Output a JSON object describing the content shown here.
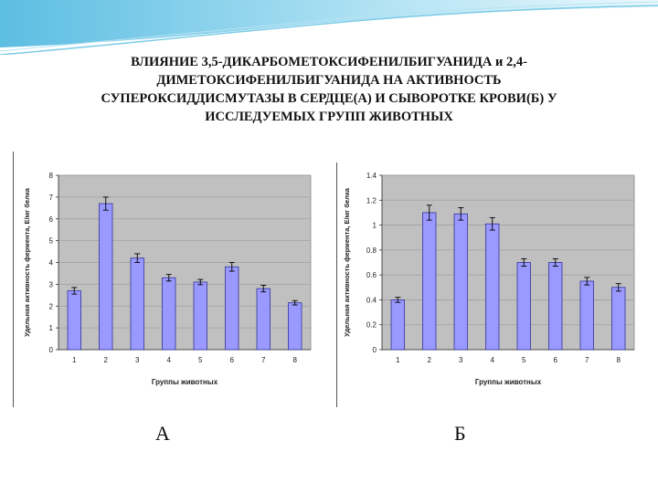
{
  "slide": {
    "title": "ВЛИЯНИЕ 3,5-ДИКАРБОМЕТОКСИФЕНИЛБИГУАНИДА и 2,4-\nДИМЕТОКСИФЕНИЛБИГУАНИДА НА АКТИВНОСТЬ\nСУПЕРОКСИДДИСМУТАЗЫ В СЕРДЦЕ(А) И СЫВОРОТКЕ КРОВИ(Б) У\nИССЛЕДУЕМЫХ ГРУПП ЖИВОТНЫХ",
    "label_a": "А",
    "label_b": "Б"
  },
  "colors": {
    "plot_bg": "#c0c0c0",
    "bar_fill": "#9999ff",
    "bar_stroke": "#333399",
    "wave": "#6fc4e3"
  },
  "chart_data": [
    {
      "type": "bar",
      "categories": [
        "1",
        "2",
        "3",
        "4",
        "5",
        "6",
        "7",
        "8"
      ],
      "values": [
        2.7,
        6.7,
        4.2,
        3.3,
        3.1,
        3.8,
        2.8,
        2.15
      ],
      "errors": [
        0.15,
        0.3,
        0.2,
        0.15,
        0.12,
        0.2,
        0.15,
        0.1
      ],
      "ylim": [
        0,
        8
      ],
      "yticks": [
        "0",
        "1",
        "2",
        "3",
        "4",
        "5",
        "6",
        "7",
        "8"
      ],
      "xlabel": "Группы животных",
      "ylabel": "Удельная активность фермента, Е/мг белка",
      "grid": true
    },
    {
      "type": "bar",
      "categories": [
        "1",
        "2",
        "3",
        "4",
        "5",
        "6",
        "7",
        "8"
      ],
      "values": [
        0.4,
        1.1,
        1.09,
        1.01,
        0.7,
        0.7,
        0.55,
        0.5
      ],
      "errors": [
        0.02,
        0.06,
        0.05,
        0.05,
        0.03,
        0.03,
        0.03,
        0.03
      ],
      "ylim": [
        0,
        1.4
      ],
      "yticks": [
        "0",
        "0.2",
        "0.4",
        "0.6",
        "0.8",
        "1",
        "1.2",
        "1.4"
      ],
      "xlabel": "Группы животных",
      "ylabel": "Удельная активность фермента, Е/мг белка",
      "grid": true
    }
  ]
}
